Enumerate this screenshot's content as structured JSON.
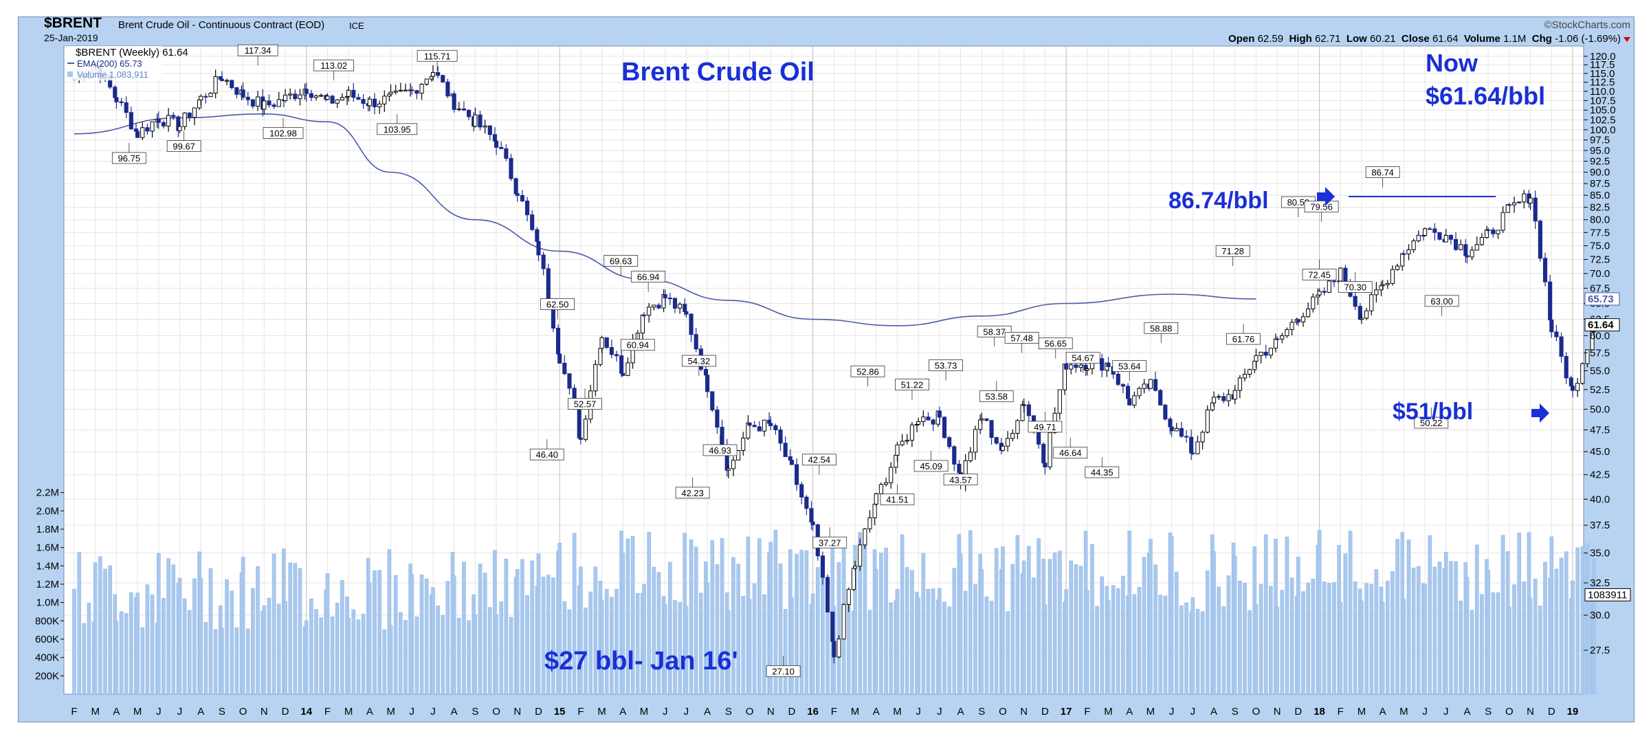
{
  "header": {
    "symbol": "$BRENT",
    "description": "Brent Crude Oil - Continuous Contract (EOD)",
    "exchange": "ICE",
    "date": "25-Jan-2019",
    "brand": "©StockCharts.com",
    "open_label": "Open",
    "open": "62.59",
    "high_label": "High",
    "high": "62.71",
    "low_label": "Low",
    "low": "60.21",
    "close_label": "Close",
    "close": "61.64",
    "volume_label": "Volume",
    "volume": "1.1M",
    "chg_label": "Chg",
    "chg": "-1.06 (-1.69%)"
  },
  "legend": {
    "price": "$BRENT (Weekly) 61.64",
    "ema": "EMA(200) 65.73",
    "volume": "Volume 1,083,911"
  },
  "colors": {
    "frame": "#b7d3f1",
    "down_bar": "#1b2a8c",
    "up_bar": "#000000",
    "ema": "#4a5aa8",
    "volume": "#a8c8ee",
    "annotation": "#1a2fd6"
  },
  "annotations": {
    "title": "Brent Crude Oil",
    "now_line1": "Now",
    "now_line2": "$61.64/bbl",
    "peak": "86.74/bbl",
    "low51": "$51/bbl",
    "low27": "$27 bbl- Jan 16'"
  },
  "chart_data": {
    "type": "candlestick",
    "title": "Brent Crude Oil",
    "price_axis": {
      "ylim": [
        25,
        121
      ],
      "ticks": [
        "27.5",
        "30.0",
        "32.5",
        "35.0",
        "37.5",
        "40.0",
        "42.5",
        "45.0",
        "47.5",
        "50.0",
        "52.5",
        "55.0",
        "57.5",
        "60.0",
        "62.5",
        "65.0",
        "67.5",
        "70.0",
        "72.5",
        "75.0",
        "77.5",
        "80.0",
        "82.5",
        "85.0",
        "87.5",
        "90.0",
        "92.5",
        "95.0",
        "97.5",
        "100.0",
        "102.5",
        "105.0",
        "107.5",
        "110.0",
        "112.5",
        "115.0",
        "117.5",
        "120.0"
      ],
      "scale": "log"
    },
    "volume_axis": {
      "ylim": [
        0,
        2400000
      ],
      "ticks": [
        "200K",
        "400K",
        "600K",
        "800K",
        "1.0M",
        "1.2M",
        "1.4M",
        "1.6M",
        "1.8M",
        "2.0M",
        "2.2M"
      ]
    },
    "x_labels": [
      "F",
      "M",
      "A",
      "M",
      "J",
      "J",
      "A",
      "S",
      "O",
      "N",
      "D",
      "14",
      "F",
      "M",
      "A",
      "M",
      "J",
      "J",
      "A",
      "S",
      "O",
      "N",
      "D",
      "15",
      "F",
      "M",
      "A",
      "M",
      "J",
      "J",
      "A",
      "S",
      "O",
      "N",
      "D",
      "16",
      "F",
      "M",
      "A",
      "M",
      "J",
      "J",
      "A",
      "S",
      "O",
      "N",
      "D",
      "17",
      "F",
      "M",
      "A",
      "M",
      "J",
      "J",
      "A",
      "S",
      "O",
      "N",
      "D",
      "18",
      "F",
      "M",
      "A",
      "M",
      "J",
      "J",
      "A",
      "S",
      "O",
      "N",
      "D",
      "19"
    ],
    "price_path": [
      [
        "2013-01",
        113.5
      ],
      [
        "2013-02",
        117.3
      ],
      [
        "2013-03",
        108
      ],
      [
        "2013-04",
        99
      ],
      [
        "2013-05",
        103
      ],
      [
        "2013-06",
        101
      ],
      [
        "2013-07",
        108
      ],
      [
        "2013-08",
        114
      ],
      [
        "2013-09",
        109
      ],
      [
        "2013-10",
        106
      ],
      [
        "2013-11",
        108
      ],
      [
        "2013-12",
        111
      ],
      [
        "2014-01",
        107
      ],
      [
        "2014-02",
        109
      ],
      [
        "2014-03",
        107
      ],
      [
        "2014-04",
        108
      ],
      [
        "2014-05",
        110
      ],
      [
        "2014-06",
        115.7
      ],
      [
        "2014-07",
        107
      ],
      [
        "2014-08",
        102
      ],
      [
        "2014-09",
        97
      ],
      [
        "2014-10",
        86
      ],
      [
        "2014-11",
        74
      ],
      [
        "2014-12",
        57
      ],
      [
        "2015-01",
        46.4
      ],
      [
        "2015-02",
        60
      ],
      [
        "2015-03",
        55
      ],
      [
        "2015-04",
        64
      ],
      [
        "2015-05",
        66
      ],
      [
        "2015-06",
        63
      ],
      [
        "2015-07",
        53
      ],
      [
        "2015-08",
        43
      ],
      [
        "2015-09",
        48
      ],
      [
        "2015-10",
        48
      ],
      [
        "2015-11",
        43
      ],
      [
        "2015-12",
        37
      ],
      [
        "2016-01",
        27.1
      ],
      [
        "2016-02",
        34
      ],
      [
        "2016-03",
        40
      ],
      [
        "2016-04",
        45
      ],
      [
        "2016-05",
        49
      ],
      [
        "2016-06",
        49
      ],
      [
        "2016-07",
        42
      ],
      [
        "2016-08",
        49
      ],
      [
        "2016-09",
        45
      ],
      [
        "2016-10",
        51
      ],
      [
        "2016-11",
        44
      ],
      [
        "2016-12",
        56
      ],
      [
        "2017-01",
        56
      ],
      [
        "2017-02",
        56
      ],
      [
        "2017-03",
        51
      ],
      [
        "2017-04",
        53
      ],
      [
        "2017-05",
        48
      ],
      [
        "2017-06",
        45
      ],
      [
        "2017-07",
        51
      ],
      [
        "2017-08",
        52
      ],
      [
        "2017-09",
        57
      ],
      [
        "2017-10",
        59
      ],
      [
        "2017-11",
        63
      ],
      [
        "2017-12",
        66
      ],
      [
        "2018-01",
        70
      ],
      [
        "2018-02",
        63
      ],
      [
        "2018-03",
        68
      ],
      [
        "2018-04",
        74
      ],
      [
        "2018-05",
        78
      ],
      [
        "2018-06",
        77
      ],
      [
        "2018-07",
        74
      ],
      [
        "2018-08",
        77
      ],
      [
        "2018-09",
        82
      ],
      [
        "2018-10",
        85
      ],
      [
        "2018-11",
        61
      ],
      [
        "2018-12",
        52
      ],
      [
        "2019-01",
        61.64
      ]
    ],
    "ema200": [
      [
        0,
        99
      ],
      [
        5,
        103
      ],
      [
        9,
        104
      ],
      [
        12,
        102
      ],
      [
        15,
        90
      ],
      [
        19,
        80
      ],
      [
        23,
        74
      ],
      [
        27,
        69
      ],
      [
        31,
        65.5
      ],
      [
        35,
        62.5
      ],
      [
        39,
        61.5
      ],
      [
        43,
        63
      ],
      [
        47,
        65
      ],
      [
        52,
        66.5
      ],
      [
        56,
        65.73
      ]
    ],
    "point_labels": [
      {
        "text": "117.34",
        "x": 8.7,
        "y": 117.3
      },
      {
        "text": "113.02",
        "x": 12.3,
        "y": 113.0
      },
      {
        "text": "115.71",
        "x": 17.2,
        "y": 115.7
      },
      {
        "text": "96.75",
        "x": 2.6,
        "y": 96.8,
        "below": true
      },
      {
        "text": "99.67",
        "x": 5.2,
        "y": 99.7,
        "below": true
      },
      {
        "text": "102.98",
        "x": 9.9,
        "y": 103.0,
        "below": true
      },
      {
        "text": "103.95",
        "x": 15.3,
        "y": 104.0,
        "below": true
      },
      {
        "text": "62.50",
        "x": 22.9,
        "y": 62.5
      },
      {
        "text": "69.63",
        "x": 25.9,
        "y": 69.6
      },
      {
        "text": "66.94",
        "x": 27.2,
        "y": 66.9
      },
      {
        "text": "46.40",
        "x": 22.4,
        "y": 46.4,
        "below": true
      },
      {
        "text": "52.57",
        "x": 24.2,
        "y": 52.6,
        "below": true
      },
      {
        "text": "60.94",
        "x": 26.7,
        "y": 60.9,
        "below": true
      },
      {
        "text": "54.32",
        "x": 29.6,
        "y": 54.3
      },
      {
        "text": "46.93",
        "x": 30.6,
        "y": 46.9,
        "below": true
      },
      {
        "text": "42.23",
        "x": 29.3,
        "y": 42.2,
        "below": true
      },
      {
        "text": "27.10",
        "x": 33.6,
        "y": 27.1,
        "below": true
      },
      {
        "text": "42.54",
        "x": 35.3,
        "y": 42.5
      },
      {
        "text": "37.27",
        "x": 35.8,
        "y": 37.3,
        "below": true
      },
      {
        "text": "52.86",
        "x": 37.6,
        "y": 52.9
      },
      {
        "text": "51.22",
        "x": 39.7,
        "y": 51.2
      },
      {
        "text": "53.73",
        "x": 41.3,
        "y": 53.7
      },
      {
        "text": "41.51",
        "x": 39.0,
        "y": 41.5,
        "below": true
      },
      {
        "text": "45.09",
        "x": 40.6,
        "y": 45.1,
        "below": true
      },
      {
        "text": "43.57",
        "x": 42.0,
        "y": 43.6,
        "below": true
      },
      {
        "text": "58.37",
        "x": 43.6,
        "y": 58.4
      },
      {
        "text": "57.48",
        "x": 44.9,
        "y": 57.5
      },
      {
        "text": "56.65",
        "x": 46.5,
        "y": 56.7
      },
      {
        "text": "54.67",
        "x": 47.8,
        "y": 54.7
      },
      {
        "text": "53.58",
        "x": 43.7,
        "y": 53.6,
        "below": true
      },
      {
        "text": "49.71",
        "x": 46.0,
        "y": 49.7,
        "below": true
      },
      {
        "text": "46.64",
        "x": 47.2,
        "y": 46.6,
        "below": true
      },
      {
        "text": "44.35",
        "x": 48.7,
        "y": 44.4,
        "below": true
      },
      {
        "text": "53.64",
        "x": 50.0,
        "y": 53.6
      },
      {
        "text": "58.88",
        "x": 51.5,
        "y": 58.9
      },
      {
        "text": "71.28",
        "x": 54.9,
        "y": 71.3
      },
      {
        "text": "61.76",
        "x": 55.4,
        "y": 61.8,
        "below": true
      },
      {
        "text": "80.50",
        "x": 58.0,
        "y": 80.5
      },
      {
        "text": "79.56",
        "x": 59.1,
        "y": 79.6
      },
      {
        "text": "72.45",
        "x": 59.0,
        "y": 72.5,
        "below": true
      },
      {
        "text": "70.30",
        "x": 60.7,
        "y": 70.3,
        "below": true
      },
      {
        "text": "86.74",
        "x": 62.0,
        "y": 86.7
      },
      {
        "text": "50.22",
        "x": 64.3,
        "y": 50.2,
        "below": true
      },
      {
        "text": "63.00",
        "x": 64.8,
        "y": 63.0
      }
    ],
    "axis_value_labels": [
      {
        "text": "65.73",
        "value": 65.73,
        "color": "#4a5aa8"
      },
      {
        "text": "61.64",
        "value": 61.64,
        "color": "#000000"
      },
      {
        "text": "1083911",
        "value": 1083911,
        "axis": "volume"
      }
    ]
  }
}
